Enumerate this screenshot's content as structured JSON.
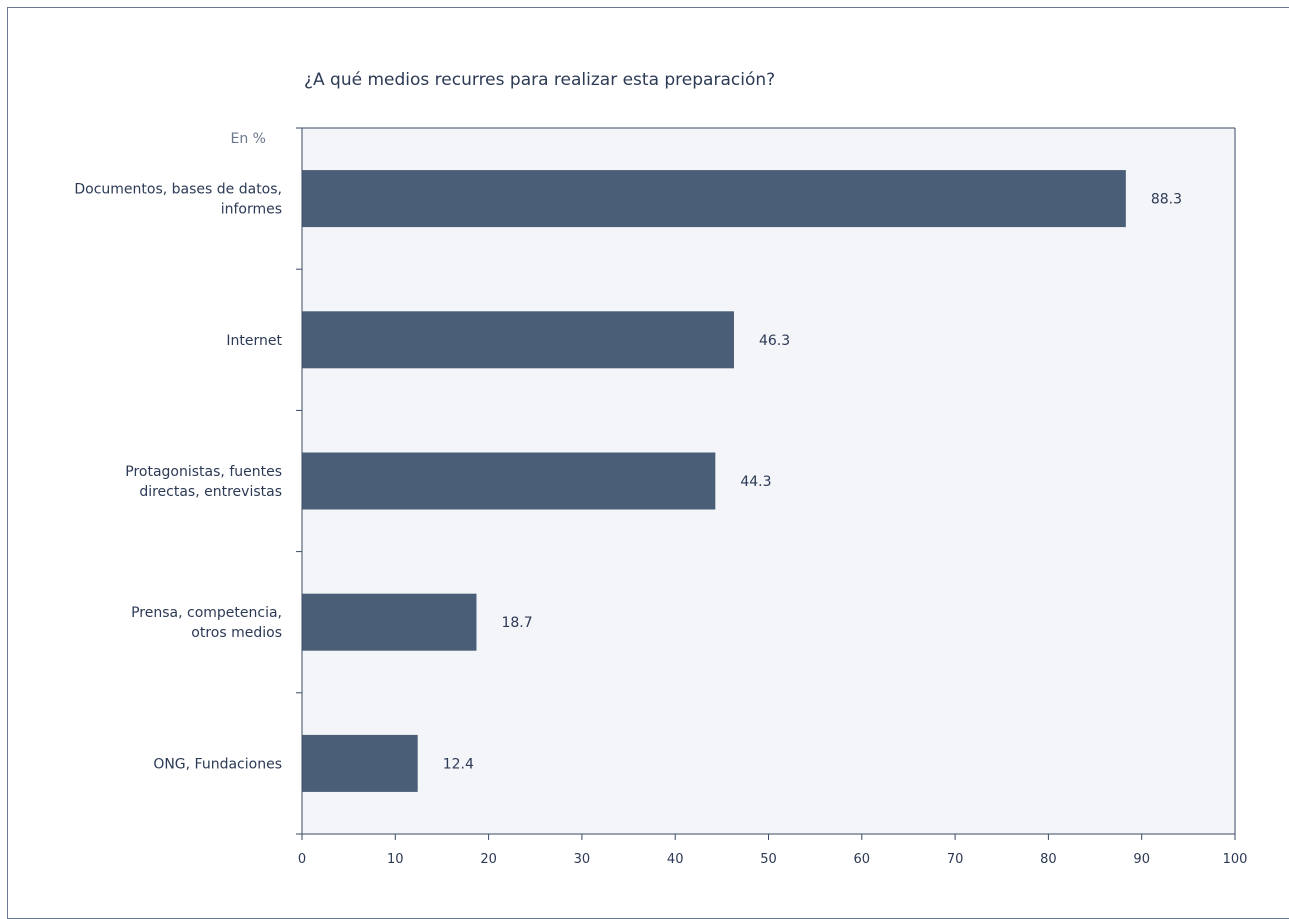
{
  "colors": {
    "bar": "#4a5e78",
    "plot_background": "#f3f5f8",
    "axis": "#3a4a66",
    "frame": "#6b7a94"
  },
  "chart_data": {
    "type": "bar",
    "orientation": "horizontal",
    "title": "¿A qué medios recurres para realizar esta preparación?",
    "unit_label": "En %",
    "categories": [
      [
        "Documentos, bases de datos,",
        "informes"
      ],
      [
        "Internet"
      ],
      [
        "Protagonistas, fuentes",
        "directas, entrevistas"
      ],
      [
        "Prensa, competencia,",
        "otros medios"
      ],
      [
        "ONG, Fundaciones"
      ]
    ],
    "values": [
      88.3,
      46.3,
      44.3,
      18.7,
      12.4
    ],
    "value_labels": [
      "88.3",
      "46.3",
      "44.3",
      "18.7",
      "12.4"
    ],
    "xlim": [
      0,
      100
    ],
    "xticks": [
      0,
      10,
      20,
      30,
      40,
      50,
      60,
      70,
      80,
      90,
      100
    ],
    "grid": false,
    "legend": "none"
  }
}
